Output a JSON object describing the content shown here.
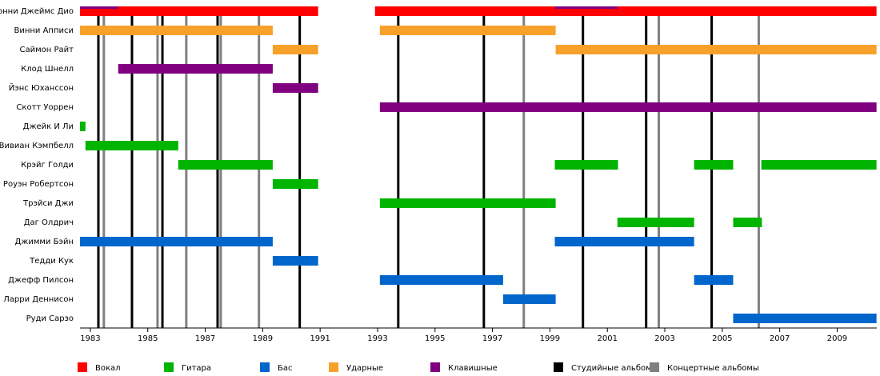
{
  "chart_data": {
    "type": "timeline",
    "categories": [
      "Ронни Джеймс Дио",
      "Винни Апписи",
      "Саймон Райт",
      "Клод Шнелл",
      "Йэнс Юханссон",
      "Скотт Уоррен",
      "Джейк И Ли",
      "Вивиан Кэмпбелл",
      "Крэйг Голди",
      "Роуэн Робертсон",
      "Трэйси Джи",
      "Даг Олдрич",
      "Джимми Бэйн",
      "Тедди Кук",
      "Джефф Пилсон",
      "Ларри Деннисон",
      "Руди Сарзо"
    ],
    "series": [
      {
        "name": "Вокал",
        "color": "#ff0000",
        "values": [
          [
            [
              1982.64,
              1990.93
            ],
            [
              1992.91,
              2010.37
            ]
          ],
          null,
          null,
          null,
          null,
          null,
          null,
          null,
          null,
          null,
          null,
          null,
          null,
          null,
          null,
          null,
          null
        ]
      },
      {
        "name": "Гитара",
        "color": "#00b400",
        "values": [
          null,
          null,
          null,
          null,
          null,
          null,
          [
            [
              1982.64,
              1982.83
            ]
          ],
          [
            [
              1982.83,
              1986.06
            ]
          ],
          [
            [
              1986.06,
              1989.35
            ],
            [
              1999.17,
              2001.37
            ],
            [
              2004.02,
              2005.38
            ],
            [
              2006.36,
              2010.37
            ]
          ],
          [
            [
              1989.35,
              1990.93
            ]
          ],
          [
            [
              1993.08,
              1999.2
            ]
          ],
          [
            [
              2001.35,
              2004.02
            ],
            [
              2005.38,
              2006.38
            ]
          ],
          null,
          null,
          null,
          null,
          null
        ]
      },
      {
        "name": "Бас",
        "color": "#0066cc",
        "values": [
          null,
          null,
          null,
          null,
          null,
          null,
          null,
          null,
          null,
          null,
          null,
          null,
          [
            [
              1982.64,
              1989.35
            ],
            [
              1999.17,
              2004.02
            ]
          ],
          [
            [
              1989.35,
              1990.93
            ]
          ],
          [
            [
              1993.08,
              1997.37
            ],
            [
              2004.02,
              2005.38
            ]
          ],
          [
            [
              1997.37,
              1999.2
            ]
          ],
          [
            [
              2005.38,
              2010.37
            ]
          ]
        ]
      },
      {
        "name": "Ударные",
        "color": "#f7a12a",
        "values": [
          null,
          [
            [
              1982.64,
              1989.35
            ],
            [
              1993.08,
              1999.2
            ]
          ],
          [
            [
              1989.35,
              1990.93
            ],
            [
              1999.2,
              2010.37
            ]
          ],
          null,
          null,
          null,
          null,
          null,
          null,
          null,
          null,
          null,
          null,
          null,
          null,
          null,
          null
        ]
      },
      {
        "name": "Клавишные",
        "color": "#800080",
        "values": [
          [
            [
              1982.64,
              1983.97
            ],
            [
              1999.17,
              2001.35
            ]
          ],
          null,
          null,
          [
            [
              1983.97,
              1989.35
            ]
          ],
          [
            [
              1989.35,
              1990.93
            ]
          ],
          [
            [
              1993.08,
              2010.37
            ]
          ],
          null,
          null,
          null,
          null,
          null,
          null,
          null,
          null,
          null,
          null,
          null
        ]
      },
      {
        "name": "Студийные альбомы",
        "color": "#000000",
        "x": [
          1983.28,
          1984.45,
          1985.51,
          1987.43,
          1990.29,
          1993.72,
          1996.7,
          2000.15,
          2002.35,
          2004.63
        ]
      },
      {
        "name": "Концертные альбомы",
        "color": "#808080",
        "x": [
          1983.47,
          1985.34,
          1986.34,
          1987.54,
          1988.87,
          1998.09,
          2002.79,
          2006.27
        ]
      }
    ],
    "xlim": [
      1982.64,
      2010.38
    ],
    "xticks": [
      1983,
      1985,
      1987,
      1989,
      1991,
      1993,
      1995,
      1997,
      1999,
      2001,
      2003,
      2005,
      2007,
      2009
    ]
  }
}
